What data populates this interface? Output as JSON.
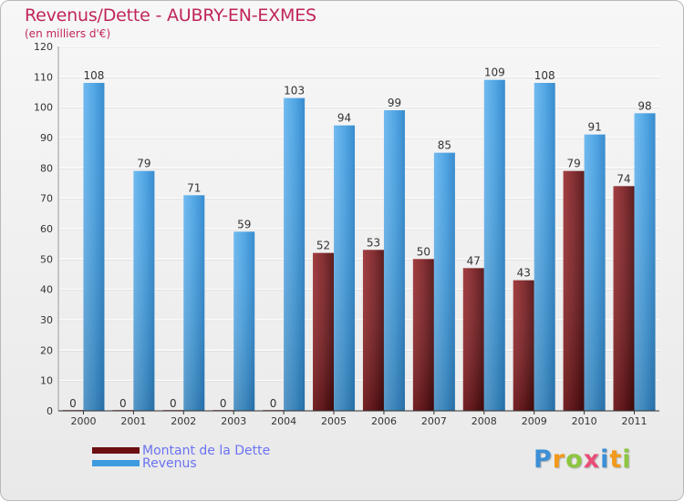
{
  "header": {
    "title": "Revenus/Dette - AUBRY-EN-EXMES",
    "subtitle": "(en milliers d'€)"
  },
  "colors": {
    "debt": "#7a1e22",
    "revenue": "#4aa3e3",
    "title": "#c0255a",
    "legend_text": "#6b73f2"
  },
  "legend": [
    {
      "label": "Montant de la Dette",
      "color": "#6b0f12"
    },
    {
      "label": "Revenus",
      "color": "#3d9be0"
    }
  ],
  "logo": {
    "text": "Proxiti",
    "letters": [
      "P",
      "r",
      "o",
      "x",
      "i",
      "t",
      "i"
    ],
    "colors": [
      "#3d8fd6",
      "#f29a1c",
      "#8cc63f",
      "#e94e77",
      "#3d8fd6",
      "#f29a1c",
      "#8cc63f"
    ]
  },
  "chart_data": {
    "type": "bar",
    "title": "Revenus/Dette - AUBRY-EN-EXMES",
    "subtitle": "(en milliers d'€)",
    "xlabel": "",
    "ylabel": "",
    "ylim": [
      0,
      120
    ],
    "yticks": [
      0,
      10,
      20,
      30,
      40,
      50,
      60,
      70,
      80,
      90,
      100,
      110,
      120
    ],
    "grid": true,
    "legend_position": "bottom-left",
    "categories": [
      "2000",
      "2001",
      "2002",
      "2003",
      "2004",
      "2005",
      "2006",
      "2007",
      "2008",
      "2009",
      "2010",
      "2011"
    ],
    "series": [
      {
        "name": "Montant de la Dette",
        "values": [
          0,
          0,
          0,
          0,
          0,
          52,
          53,
          50,
          47,
          43,
          79,
          74
        ]
      },
      {
        "name": "Revenus",
        "values": [
          108,
          79,
          71,
          59,
          103,
          94,
          99,
          85,
          109,
          108,
          91,
          98
        ]
      }
    ]
  }
}
